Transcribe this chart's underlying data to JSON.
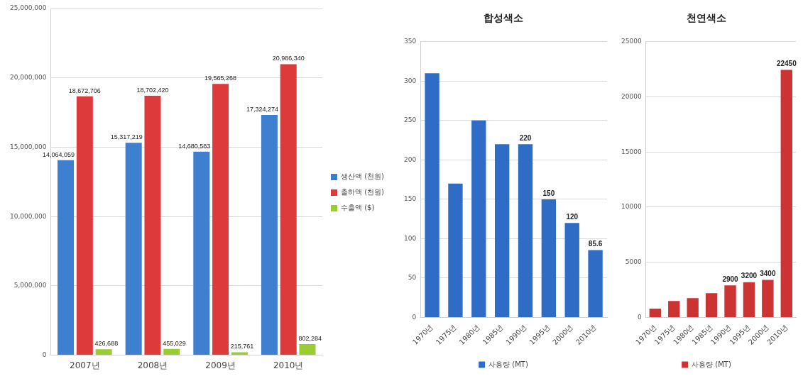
{
  "chart_data": [
    {
      "type": "bar",
      "categories": [
        "2007년",
        "2008년",
        "2009년",
        "2010년"
      ],
      "series": [
        {
          "name": "생산액 (천원)",
          "color": "#3f7fd0",
          "values": [
            14064059,
            15317219,
            14680583,
            17324274
          ],
          "value_labels": [
            "14,064,059",
            "15,317,219",
            "14,680,583",
            "17,324,274"
          ]
        },
        {
          "name": "출하액 (천원)",
          "color": "#dd3b3b",
          "values": [
            18672706,
            18702420,
            19565268,
            20986340
          ],
          "value_labels": [
            "18,672,706",
            "18,702,420",
            "19,565,268",
            "20,986,340"
          ]
        },
        {
          "name": "수출액 ($)",
          "color": "#9acd32",
          "values": [
            426688,
            455029,
            215761,
            802284
          ],
          "value_labels": [
            "426,688",
            "455,029",
            "215,761",
            "802,284"
          ]
        }
      ],
      "ylim": [
        0,
        25000000
      ],
      "yticks": [
        {
          "value": 0,
          "label": "0"
        },
        {
          "value": 5000000,
          "label": "5,000,000"
        },
        {
          "value": 10000000,
          "label": "10,000,000"
        },
        {
          "value": 15000000,
          "label": "15,000,000"
        },
        {
          "value": 20000000,
          "label": "20,000,000"
        },
        {
          "value": 25000000,
          "label": "25,000,000"
        }
      ],
      "grid": "y",
      "legend": "right"
    },
    {
      "type": "bar",
      "title": "합성색소",
      "categories": [
        "1970년",
        "1975년",
        "1980년",
        "1985년",
        "1990년",
        "1995년",
        "2000년",
        "2010년"
      ],
      "series": [
        {
          "name": "사용량 (MT)",
          "color": "#2e6cc6",
          "values": [
            310,
            170,
            250,
            220,
            220,
            150,
            120,
            85.6
          ],
          "value_labels": [
            null,
            null,
            null,
            null,
            "220",
            "150",
            "120",
            "85.6"
          ]
        }
      ],
      "ylim": [
        0,
        350
      ],
      "yticks": [
        0,
        50,
        100,
        150,
        200,
        250,
        300,
        350
      ],
      "grid": "y",
      "legend": "bottom"
    },
    {
      "type": "bar",
      "title": "천연색소",
      "categories": [
        "1970년",
        "1975년",
        "1980년",
        "1985년",
        "1990년",
        "1995년",
        "2000년",
        "2010년"
      ],
      "series": [
        {
          "name": "사용량 (MT)",
          "color": "#cc3333",
          "values": [
            800,
            1500,
            1750,
            2200,
            2900,
            3200,
            3400,
            22450
          ],
          "value_labels": [
            null,
            null,
            null,
            null,
            "2900",
            "3200",
            "3400",
            "22450"
          ]
        }
      ],
      "ylim": [
        0,
        25000
      ],
      "yticks": [
        0,
        5000,
        10000,
        15000,
        20000,
        25000
      ],
      "grid": "y",
      "legend": "bottom"
    }
  ]
}
